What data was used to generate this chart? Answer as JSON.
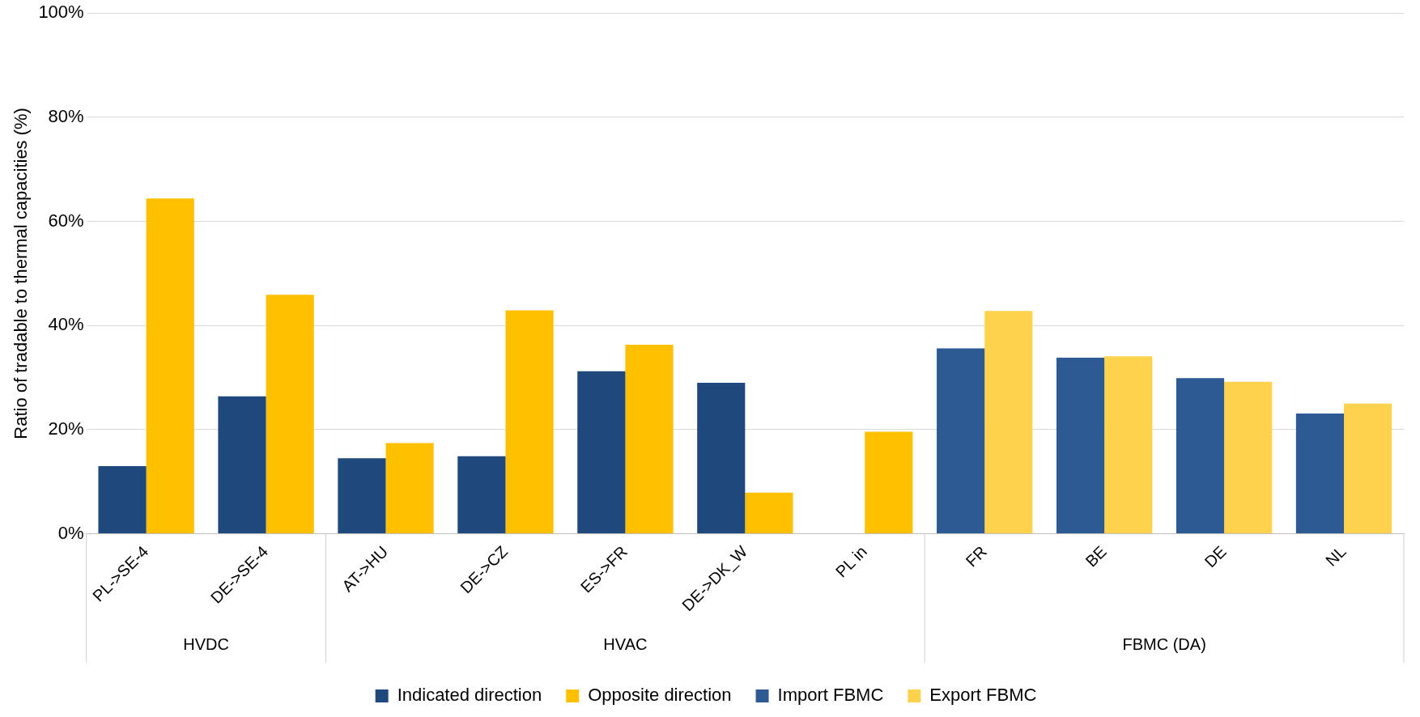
{
  "chart_data": {
    "type": "bar",
    "ylabel": "Ratio of tradable to thermal capacities (%)",
    "categories": [
      "PL->SE-4",
      "DE->SE-4",
      "AT->HU",
      "DE->CZ",
      "ES->FR",
      "DE->DK_W",
      "PL in",
      "FR",
      "BE",
      "DE",
      "NL"
    ],
    "series": [
      {
        "name": "Indicated direction",
        "color": "#1f497d",
        "values": [
          13.0,
          26.4,
          14.5,
          14.9,
          31.2,
          29.0,
          null,
          null,
          null,
          null,
          null
        ]
      },
      {
        "name": "Opposite direction",
        "color": "#ffc000",
        "values": [
          64.4,
          45.9,
          17.4,
          42.9,
          36.3,
          7.9,
          19.6,
          null,
          null,
          null,
          null
        ]
      },
      {
        "name": "Import FBMC",
        "color": "#2e5a94",
        "values": [
          null,
          null,
          null,
          null,
          null,
          null,
          null,
          35.6,
          33.8,
          29.9,
          23.1
        ]
      },
      {
        "name": "Export FBMC",
        "color": "#ffd24d",
        "values": [
          null,
          null,
          null,
          null,
          null,
          null,
          null,
          42.8,
          34.1,
          29.2,
          25.0
        ]
      }
    ],
    "ylim": [
      0,
      100
    ],
    "yticks": [
      {
        "value": 0,
        "label": "0%"
      },
      {
        "value": 20,
        "label": "20%"
      },
      {
        "value": 40,
        "label": "40%"
      },
      {
        "value": 60,
        "label": "60%"
      },
      {
        "value": 80,
        "label": "80%"
      },
      {
        "value": 100,
        "label": "100%"
      }
    ],
    "grid": "y",
    "legend": "bottom",
    "annotations": [
      "HVDC",
      "HVAC",
      "FBMC (DA)"
    ]
  }
}
